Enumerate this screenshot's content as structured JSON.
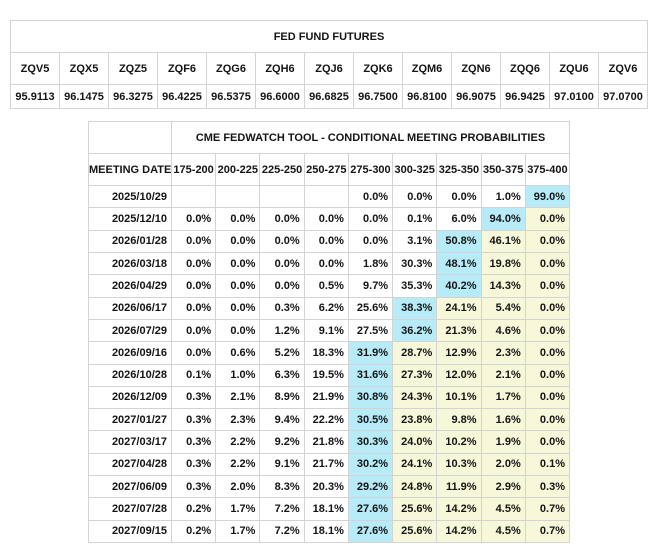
{
  "colors": {
    "highlight_cyan": "#b6ebf7",
    "highlight_yellow": "#f7f7d9",
    "grid_border": "#d3d3d3",
    "background": "#ffffff",
    "text": "#141414"
  },
  "futures_table": {
    "title": "FED FUND FUTURES",
    "columns": [
      "ZQV5",
      "ZQX5",
      "ZQZ5",
      "ZQF6",
      "ZQG6",
      "ZQH6",
      "ZQJ6",
      "ZQK6",
      "ZQM6",
      "ZQN6",
      "ZQQ6",
      "ZQU6",
      "ZQV6"
    ],
    "values": [
      "95.9113",
      "96.1475",
      "96.3275",
      "96.4225",
      "96.5375",
      "96.6000",
      "96.6825",
      "96.7500",
      "96.8100",
      "96.9075",
      "96.9425",
      "97.0100",
      "97.0700"
    ]
  },
  "fedwatch_table": {
    "title": "CME FEDWATCH TOOL - CONDITIONAL MEETING PROBABILITIES",
    "date_header": "MEETING DATE",
    "range_headers": [
      "175-200",
      "200-225",
      "225-250",
      "250-275",
      "275-300",
      "300-325",
      "325-350",
      "350-375",
      "375-400"
    ],
    "rows": [
      {
        "date": "2025/10/29",
        "values": [
          "",
          "",
          "",
          "",
          "0.0%",
          "0.0%",
          "0.0%",
          "1.0%",
          "99.0%"
        ],
        "highlight": [
          "",
          "",
          "",
          "",
          "",
          "",
          "",
          "",
          "c"
        ]
      },
      {
        "date": "2025/12/10",
        "values": [
          "0.0%",
          "0.0%",
          "0.0%",
          "0.0%",
          "0.0%",
          "0.1%",
          "6.0%",
          "94.0%",
          "0.0%"
        ],
        "highlight": [
          "",
          "",
          "",
          "",
          "",
          "",
          "",
          "c",
          "y"
        ]
      },
      {
        "date": "2026/01/28",
        "values": [
          "0.0%",
          "0.0%",
          "0.0%",
          "0.0%",
          "0.0%",
          "3.1%",
          "50.8%",
          "46.1%",
          "0.0%"
        ],
        "highlight": [
          "",
          "",
          "",
          "",
          "",
          "",
          "c",
          "y",
          "y"
        ]
      },
      {
        "date": "2026/03/18",
        "values": [
          "0.0%",
          "0.0%",
          "0.0%",
          "0.0%",
          "1.8%",
          "30.3%",
          "48.1%",
          "19.8%",
          "0.0%"
        ],
        "highlight": [
          "",
          "",
          "",
          "",
          "",
          "",
          "c",
          "y",
          "y"
        ]
      },
      {
        "date": "2026/04/29",
        "values": [
          "0.0%",
          "0.0%",
          "0.0%",
          "0.5%",
          "9.7%",
          "35.3%",
          "40.2%",
          "14.3%",
          "0.0%"
        ],
        "highlight": [
          "",
          "",
          "",
          "",
          "",
          "",
          "c",
          "y",
          "y"
        ]
      },
      {
        "date": "2026/06/17",
        "values": [
          "0.0%",
          "0.0%",
          "0.3%",
          "6.2%",
          "25.6%",
          "38.3%",
          "24.1%",
          "5.4%",
          "0.0%"
        ],
        "highlight": [
          "",
          "",
          "",
          "",
          "",
          "c",
          "y",
          "y",
          "y"
        ]
      },
      {
        "date": "2026/07/29",
        "values": [
          "0.0%",
          "0.0%",
          "1.2%",
          "9.1%",
          "27.5%",
          "36.2%",
          "21.3%",
          "4.6%",
          "0.0%"
        ],
        "highlight": [
          "",
          "",
          "",
          "",
          "",
          "c",
          "y",
          "y",
          "y"
        ]
      },
      {
        "date": "2026/09/16",
        "values": [
          "0.0%",
          "0.6%",
          "5.2%",
          "18.3%",
          "31.9%",
          "28.7%",
          "12.9%",
          "2.3%",
          "0.0%"
        ],
        "highlight": [
          "",
          "",
          "",
          "",
          "c",
          "y",
          "y",
          "y",
          "y"
        ]
      },
      {
        "date": "2026/10/28",
        "values": [
          "0.1%",
          "1.0%",
          "6.3%",
          "19.5%",
          "31.6%",
          "27.3%",
          "12.0%",
          "2.1%",
          "0.0%"
        ],
        "highlight": [
          "",
          "",
          "",
          "",
          "c",
          "y",
          "y",
          "y",
          "y"
        ]
      },
      {
        "date": "2026/12/09",
        "values": [
          "0.3%",
          "2.1%",
          "8.9%",
          "21.9%",
          "30.8%",
          "24.3%",
          "10.1%",
          "1.7%",
          "0.0%"
        ],
        "highlight": [
          "",
          "",
          "",
          "",
          "c",
          "y",
          "y",
          "y",
          "y"
        ]
      },
      {
        "date": "2027/01/27",
        "values": [
          "0.3%",
          "2.3%",
          "9.4%",
          "22.2%",
          "30.5%",
          "23.8%",
          "9.8%",
          "1.6%",
          "0.0%"
        ],
        "highlight": [
          "",
          "",
          "",
          "",
          "c",
          "y",
          "y",
          "y",
          "y"
        ]
      },
      {
        "date": "2027/03/17",
        "values": [
          "0.3%",
          "2.2%",
          "9.2%",
          "21.8%",
          "30.3%",
          "24.0%",
          "10.2%",
          "1.9%",
          "0.0%"
        ],
        "highlight": [
          "",
          "",
          "",
          "",
          "c",
          "y",
          "y",
          "y",
          "y"
        ]
      },
      {
        "date": "2027/04/28",
        "values": [
          "0.3%",
          "2.2%",
          "9.1%",
          "21.7%",
          "30.2%",
          "24.1%",
          "10.3%",
          "2.0%",
          "0.1%"
        ],
        "highlight": [
          "",
          "",
          "",
          "",
          "c",
          "y",
          "y",
          "y",
          "y"
        ]
      },
      {
        "date": "2027/06/09",
        "values": [
          "0.3%",
          "2.0%",
          "8.3%",
          "20.3%",
          "29.2%",
          "24.8%",
          "11.9%",
          "2.9%",
          "0.3%"
        ],
        "highlight": [
          "",
          "",
          "",
          "",
          "c",
          "y",
          "y",
          "y",
          "y"
        ]
      },
      {
        "date": "2027/07/28",
        "values": [
          "0.2%",
          "1.7%",
          "7.2%",
          "18.1%",
          "27.6%",
          "25.6%",
          "14.2%",
          "4.5%",
          "0.7%"
        ],
        "highlight": [
          "",
          "",
          "",
          "",
          "c",
          "y",
          "y",
          "y",
          "y"
        ]
      },
      {
        "date": "2027/09/15",
        "values": [
          "0.2%",
          "1.7%",
          "7.2%",
          "18.1%",
          "27.6%",
          "25.6%",
          "14.2%",
          "4.5%",
          "0.7%"
        ],
        "highlight": [
          "",
          "",
          "",
          "",
          "c",
          "y",
          "y",
          "y",
          "y"
        ]
      }
    ]
  }
}
